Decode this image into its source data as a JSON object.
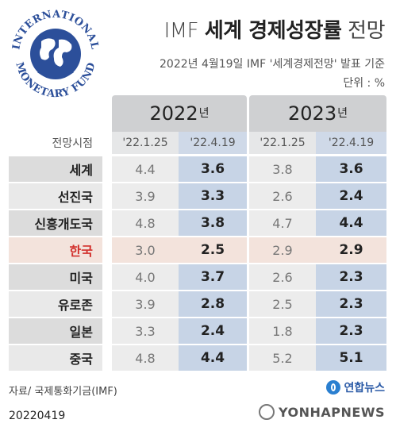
{
  "logo": {
    "icon": "imf-seal-icon",
    "text_top": "INTERNATIONAL",
    "text_bottom": "MONETARY FUND",
    "color": "#2c4f9a"
  },
  "title": {
    "prefix": "IMF",
    "main": "세계 경제성장률",
    "suffix": "전망"
  },
  "subtitle": "2022년 4월19일 IMF '세계경제전망' 발표 기준",
  "unit": "단위 : %",
  "table": {
    "years": [
      {
        "num": "2022",
        "suffix": "년"
      },
      {
        "num": "2023",
        "suffix": "년"
      }
    ],
    "header_label": "전망시점",
    "columns": [
      "'22.1.25",
      "'22.4.19",
      "'22.1.25",
      "'22.4.19"
    ],
    "rows": [
      {
        "label": "세계",
        "v": [
          "4.4",
          "3.6",
          "3.8",
          "3.6"
        ]
      },
      {
        "label": "선진국",
        "v": [
          "3.9",
          "3.3",
          "2.6",
          "2.4"
        ]
      },
      {
        "label": "신흥개도국",
        "v": [
          "4.8",
          "3.8",
          "4.7",
          "4.4"
        ]
      },
      {
        "label": "한국",
        "v": [
          "3.0",
          "2.5",
          "2.9",
          "2.9"
        ],
        "highlight": true
      },
      {
        "label": "미국",
        "v": [
          "4.0",
          "3.7",
          "2.6",
          "2.3"
        ]
      },
      {
        "label": "유로존",
        "v": [
          "3.9",
          "2.8",
          "2.5",
          "2.3"
        ]
      },
      {
        "label": "일본",
        "v": [
          "3.3",
          "2.4",
          "1.8",
          "2.3"
        ]
      },
      {
        "label": "중국",
        "v": [
          "4.8",
          "4.4",
          "5.2",
          "5.1"
        ]
      }
    ]
  },
  "source": "자료/ 국제통화기금(IMF)",
  "brand": {
    "icon": "yonhap-logo-icon",
    "name": "연합뉴스"
  },
  "date_code": "20220419",
  "watermark": {
    "icon": "yonhap-watermark-icon",
    "text": "YONHAPNEWS"
  },
  "colors": {
    "highlight_bg": "#f3e3dc",
    "highlight_text": "#d2302c",
    "new_forecast_bg": "#c7d4e6",
    "year_header_bg": "#cfd0d2"
  }
}
